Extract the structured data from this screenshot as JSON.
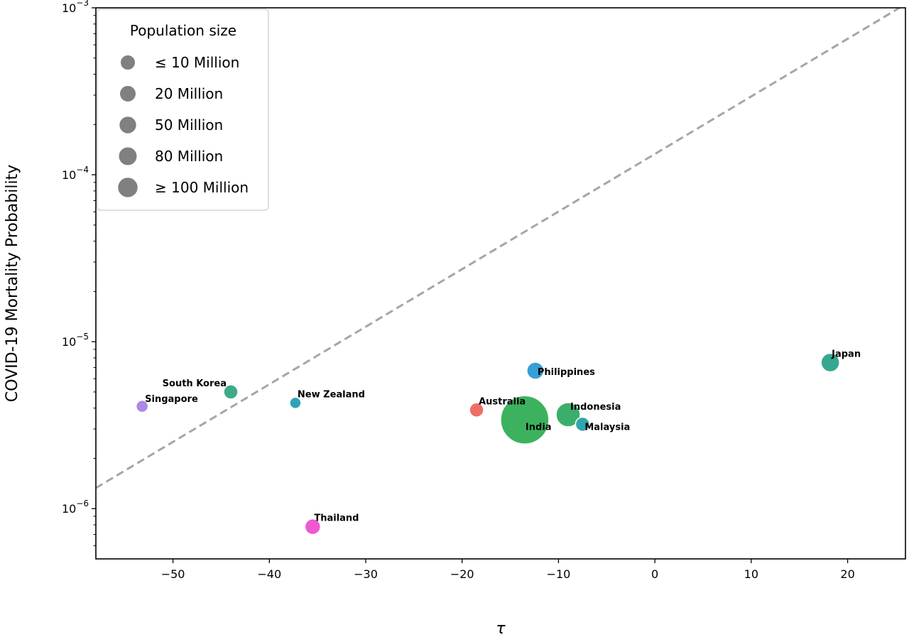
{
  "chart_data": {
    "type": "scatter",
    "xlabel": "τ",
    "ylabel": "COVID-19 Mortality Probability",
    "xlim": [
      -58,
      26
    ],
    "ylim": [
      5e-07,
      0.001
    ],
    "yscale": "log",
    "x_ticks": [
      -50,
      -40,
      -30,
      -20,
      -10,
      0,
      10,
      20
    ],
    "y_ticks": [
      1e-06,
      1e-05,
      0.0001,
      0.001
    ],
    "y_tick_labels": [
      {
        "base": "10",
        "exp": "−6"
      },
      {
        "base": "10",
        "exp": "−5"
      },
      {
        "base": "10",
        "exp": "−4"
      },
      {
        "base": "10",
        "exp": "−3"
      }
    ],
    "grid": false,
    "trend_line": {
      "style": "dashed",
      "color": "#a6a6a6",
      "x": [
        -58,
        26
      ],
      "y": [
        1.33e-06,
        0.00105
      ]
    },
    "legend": {
      "placement": "top-left",
      "title": "Population size",
      "entries": [
        "≤ 10 Million",
        "20 Million",
        "50 Million",
        "80 Million",
        "≥ 100 Million"
      ],
      "color": "#808080"
    },
    "points": [
      {
        "label": "Singapore",
        "x": -53.2,
        "y": 4.1e-06,
        "color": "#a98ae6"
      },
      {
        "label": "South Korea",
        "x": -44.0,
        "y": 5e-06,
        "color": "#3daa8c"
      },
      {
        "label": "New Zealand",
        "x": -37.3,
        "y": 4.3e-06,
        "color": "#2fa2bb"
      },
      {
        "label": "Thailand",
        "x": -35.5,
        "y": 7.8e-07,
        "color": "#ee5ad1"
      },
      {
        "label": "Australia",
        "x": -18.5,
        "y": 3.9e-06,
        "color": "#ee6e66"
      },
      {
        "label": "Philippines",
        "x": -12.4,
        "y": 6.7e-06,
        "color": "#36a0d6"
      },
      {
        "label": "India",
        "x": -13.5,
        "y": 3.4e-06,
        "color": "#3cb25e"
      },
      {
        "label": "Indonesia",
        "x": -9.0,
        "y": 3.65e-06,
        "color": "#3cae6c"
      },
      {
        "label": "Malaysia",
        "x": -7.5,
        "y": 3.2e-06,
        "color": "#33a6ad"
      },
      {
        "label": "Japan",
        "x": 18.2,
        "y": 7.5e-06,
        "color": "#36a88f"
      }
    ]
  }
}
